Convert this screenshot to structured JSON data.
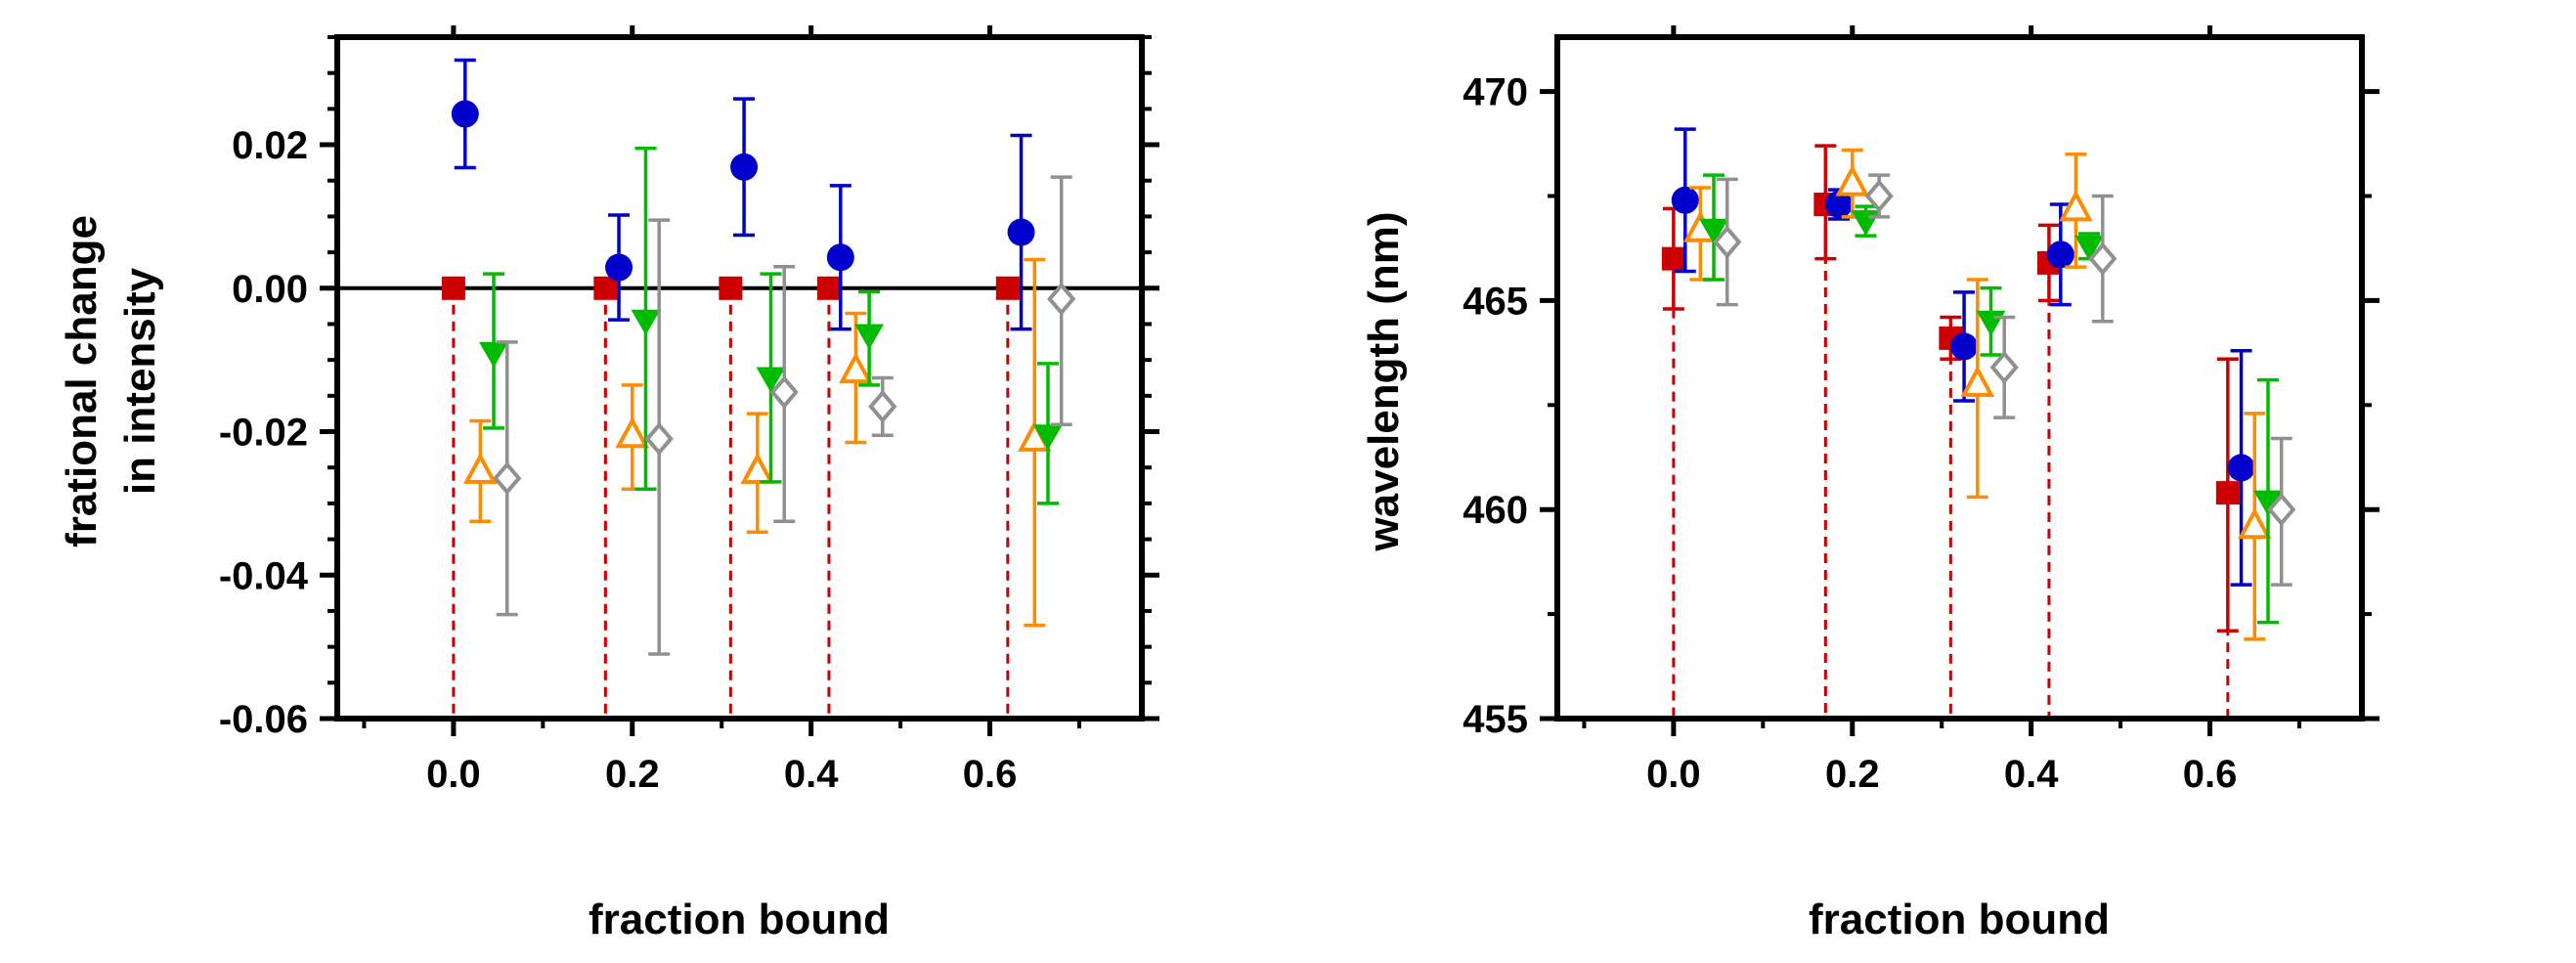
{
  "colors": {
    "red": "#cc0000",
    "blue": "#0000cc",
    "green": "#00bb00",
    "orange": "#ff8c00",
    "gray": "#909090",
    "axis": "#000000"
  },
  "chart_data": [
    {
      "type": "scatter",
      "panel": "left",
      "xlabel": "fraction bound",
      "ylabel_lines": [
        "frational change",
        "in intensity"
      ],
      "xlim": [
        -0.13,
        0.77
      ],
      "ylim": [
        -0.06,
        0.035
      ],
      "xticks": [
        0.0,
        0.2,
        0.4,
        0.6
      ],
      "xtick_labels": [
        "0.0",
        "0.2",
        "0.4",
        "0.6"
      ],
      "yticks": [
        0.02,
        0.0,
        -0.02,
        -0.04,
        -0.06
      ],
      "ytick_labels": [
        "0.02",
        "0.00",
        "-0.02",
        "-0.04",
        "-0.06"
      ],
      "zero_line": 0,
      "dashed_drops": [
        0.0,
        0.17,
        0.31,
        0.42,
        0.62
      ],
      "series": [
        {
          "name": "red-square",
          "color_key": "red",
          "marker": "square",
          "x": [
            0.0,
            0.17,
            0.31,
            0.42,
            0.62
          ],
          "y": [
            0.0,
            0.0,
            0.0,
            0.0,
            0.0
          ],
          "err_low": [
            0,
            0,
            0,
            0,
            0
          ],
          "err_high": [
            0,
            0,
            0,
            0,
            0
          ]
        },
        {
          "name": "blue-circle",
          "color_key": "blue",
          "marker": "circle",
          "x": [
            0.013,
            0.185,
            0.325,
            0.433,
            0.635
          ],
          "y": [
            0.0243,
            0.0029,
            0.0169,
            0.0043,
            0.0078
          ],
          "err_low": [
            0.0075,
            0.0073,
            0.0095,
            0.01,
            0.0135
          ],
          "err_high": [
            0.0075,
            0.0073,
            0.0095,
            0.01,
            0.0135
          ]
        },
        {
          "name": "orange-triangle",
          "color_key": "orange",
          "marker": "triangle-open",
          "x": [
            0.03,
            0.2,
            0.34,
            0.45,
            0.65
          ],
          "y": [
            -0.0255,
            -0.0205,
            -0.0255,
            -0.0115,
            -0.021
          ],
          "err_low": [
            0.007,
            0.0075,
            0.0085,
            0.01,
            0.026
          ],
          "err_high": [
            0.007,
            0.007,
            0.008,
            0.008,
            0.025
          ]
        },
        {
          "name": "green-triangle",
          "color_key": "green",
          "marker": "triangle-down",
          "x": [
            0.045,
            0.215,
            0.355,
            0.465,
            0.665
          ],
          "y": [
            -0.009,
            -0.0045,
            -0.0125,
            -0.0065,
            -0.0205
          ],
          "err_low": [
            0.0105,
            0.0235,
            0.0145,
            0.007,
            0.0095
          ],
          "err_high": [
            0.011,
            0.024,
            0.0145,
            0.006,
            0.01
          ]
        },
        {
          "name": "gray-diamond",
          "color_key": "gray",
          "marker": "diamond-open",
          "x": [
            0.06,
            0.23,
            0.37,
            0.48,
            0.68
          ],
          "y": [
            -0.0265,
            -0.021,
            -0.0145,
            -0.0165,
            -0.0015
          ],
          "err_low": [
            0.019,
            0.03,
            0.018,
            0.004,
            0.0175
          ],
          "err_high": [
            0.019,
            0.0305,
            0.0175,
            0.004,
            0.017
          ]
        }
      ]
    },
    {
      "type": "scatter",
      "panel": "right",
      "xlabel": "fraction bound",
      "ylabel": "wavelength (nm)",
      "xlim": [
        -0.13,
        0.77
      ],
      "ylim": [
        455,
        471.3
      ],
      "xticks": [
        0.0,
        0.2,
        0.4,
        0.6
      ],
      "xtick_labels": [
        "0.0",
        "0.2",
        "0.4",
        "0.6"
      ],
      "yticks": [
        470,
        465,
        460,
        455
      ],
      "ytick_labels": [
        "470",
        "465",
        "460",
        "455"
      ],
      "minor_yticks": [
        457.5,
        462.5,
        467.5
      ],
      "dashed_drops": [
        0.0,
        0.17,
        0.31,
        0.42,
        0.62
      ],
      "series": [
        {
          "name": "red-square",
          "color_key": "red",
          "marker": "square",
          "x": [
            0.0,
            0.17,
            0.31,
            0.42,
            0.62
          ],
          "y": [
            466.0,
            467.3,
            464.1,
            465.9,
            460.4
          ],
          "err_low": [
            1.2,
            1.3,
            0.5,
            0.9,
            3.3
          ],
          "err_high": [
            1.2,
            1.4,
            0.5,
            0.9,
            3.2
          ]
        },
        {
          "name": "blue-circle",
          "color_key": "blue",
          "marker": "circle",
          "x": [
            0.013,
            0.185,
            0.325,
            0.433,
            0.635
          ],
          "y": [
            467.4,
            467.3,
            463.9,
            466.1,
            461.0
          ],
          "err_low": [
            1.7,
            0.35,
            1.3,
            1.2,
            2.8
          ],
          "err_high": [
            1.7,
            0.35,
            1.3,
            1.2,
            2.8
          ]
        },
        {
          "name": "orange-triangle",
          "color_key": "orange",
          "marker": "triangle-open",
          "x": [
            0.03,
            0.2,
            0.34,
            0.45,
            0.65
          ],
          "y": [
            466.7,
            467.8,
            463.0,
            467.2,
            459.6
          ],
          "err_low": [
            1.2,
            0.8,
            2.7,
            1.4,
            2.7
          ],
          "err_high": [
            1.0,
            0.8,
            2.5,
            1.3,
            2.7
          ]
        },
        {
          "name": "green-triangle",
          "color_key": "green",
          "marker": "triangle-down",
          "x": [
            0.045,
            0.215,
            0.355,
            0.465,
            0.665
          ],
          "y": [
            466.7,
            466.9,
            464.5,
            466.3,
            460.2
          ],
          "err_low": [
            1.2,
            0.35,
            0.8,
            0.3,
            2.9
          ],
          "err_high": [
            1.3,
            0.35,
            0.8,
            0.3,
            2.9
          ]
        },
        {
          "name": "gray-diamond",
          "color_key": "gray",
          "marker": "diamond-open",
          "x": [
            0.06,
            0.23,
            0.37,
            0.48,
            0.68
          ],
          "y": [
            466.4,
            467.5,
            463.4,
            466.0,
            460.0
          ],
          "err_low": [
            1.5,
            0.5,
            1.2,
            1.5,
            1.8
          ],
          "err_high": [
            1.5,
            0.5,
            1.2,
            1.5,
            1.7
          ]
        }
      ]
    }
  ]
}
